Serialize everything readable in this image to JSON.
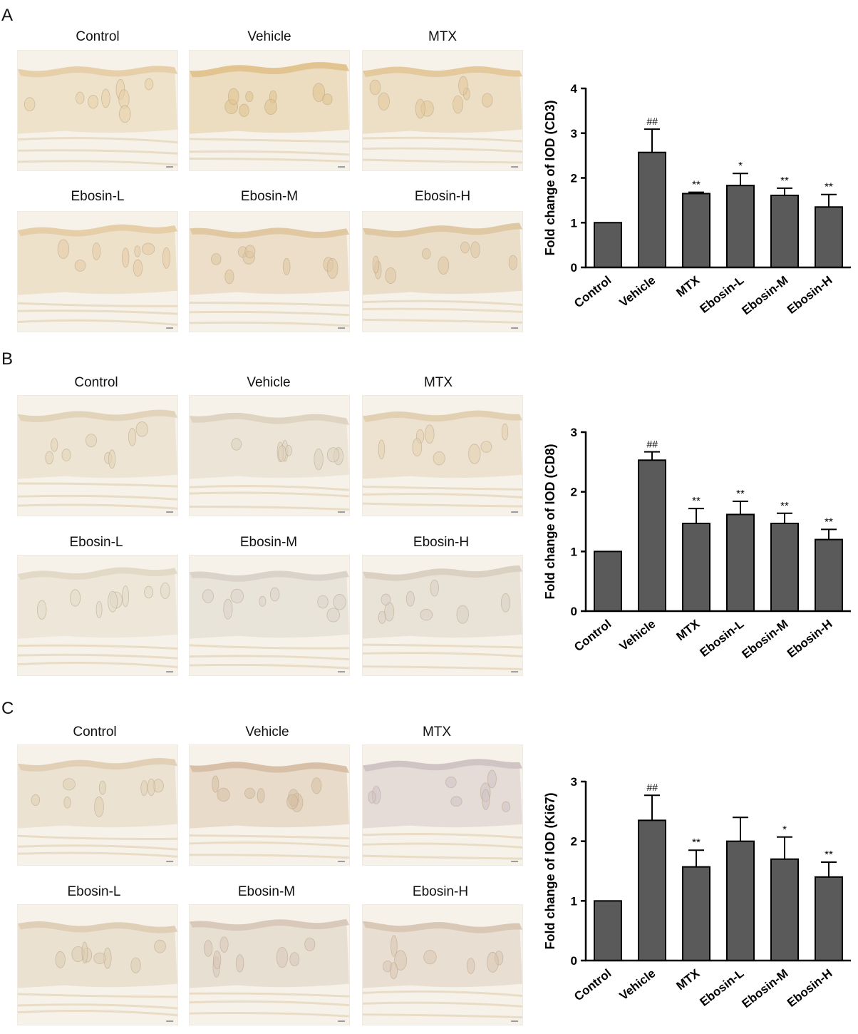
{
  "panels": [
    {
      "letter": "A",
      "micrograph_labels": [
        "Control",
        "Vehicle",
        "MTX",
        "Ebosin-L",
        "Ebosin-M",
        "Ebosin-H"
      ],
      "stain_colors": [
        "#e6cfa6",
        "#e1c28d",
        "#e3c79a",
        "#e5cca5",
        "#dfc6a0",
        "#dec6a2"
      ],
      "chart_data": {
        "type": "bar",
        "categories": [
          "Control",
          "Vehicle",
          "MTX",
          "Ebosin-L",
          "Ebosin-M",
          "Ebosin-H"
        ],
        "values": [
          1.0,
          2.57,
          1.65,
          1.83,
          1.61,
          1.35
        ],
        "errors": [
          0,
          0.52,
          0.03,
          0.27,
          0.16,
          0.28
        ],
        "annotations": [
          "",
          "##",
          "**",
          "*",
          "**",
          "**"
        ],
        "ylabel": "Fold change of IOD (CD3)",
        "ylim": [
          0,
          4
        ],
        "yticks": [
          "0",
          "1",
          "2",
          "3",
          "4"
        ],
        "bar_color": "#5a5a5a",
        "grid": false
      }
    },
    {
      "letter": "B",
      "micrograph_labels": [
        "Control",
        "Vehicle",
        "MTX",
        "Ebosin-L",
        "Ebosin-M",
        "Ebosin-H"
      ],
      "stain_colors": [
        "#e2d3b8",
        "#ded2c0",
        "#e2cfb0",
        "#e2d8c6",
        "#d8d2c8",
        "#d9d0c2"
      ],
      "chart_data": {
        "type": "bar",
        "categories": [
          "Control",
          "Vehicle",
          "MTX",
          "Ebosin-L",
          "Ebosin-M",
          "Ebosin-H"
        ],
        "values": [
          1.0,
          2.53,
          1.47,
          1.62,
          1.47,
          1.2
        ],
        "errors": [
          0,
          0.14,
          0.25,
          0.22,
          0.17,
          0.17
        ],
        "annotations": [
          "",
          "##",
          "**",
          "**",
          "**",
          "**"
        ],
        "ylabel": "Fold change of IOD (CD8)",
        "ylim": [
          0,
          3
        ],
        "yticks": [
          "0",
          "1",
          "2",
          "3"
        ],
        "bar_color": "#5a5a5a",
        "grid": false
      }
    },
    {
      "letter": "C",
      "micrograph_labels": [
        "Control",
        "Vehicle",
        "MTX",
        "Ebosin-L",
        "Ebosin-M",
        "Ebosin-H"
      ],
      "stain_colors": [
        "#e0cfb4",
        "#d6bfa4",
        "#d0c2c4",
        "#ddcdb4",
        "#d7c7b8",
        "#d8c6b4"
      ],
      "chart_data": {
        "type": "bar",
        "categories": [
          "Control",
          "Vehicle",
          "MTX",
          "Ebosin-L",
          "Ebosin-M",
          "Ebosin-H"
        ],
        "values": [
          1.0,
          2.35,
          1.57,
          2.0,
          1.7,
          1.4
        ],
        "errors": [
          0,
          0.42,
          0.28,
          0.4,
          0.37,
          0.25
        ],
        "annotations": [
          "",
          "##",
          "**",
          "",
          "*",
          "**"
        ],
        "ylabel": "Fold change of IOD (Ki67)",
        "ylim": [
          0,
          3
        ],
        "yticks": [
          "0",
          "1",
          "2",
          "3"
        ],
        "bar_color": "#5a5a5a",
        "grid": false
      }
    }
  ]
}
